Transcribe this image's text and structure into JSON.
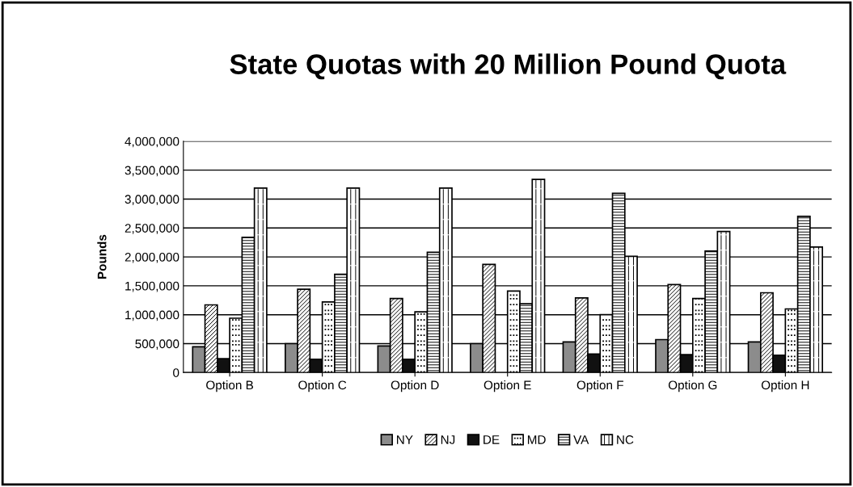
{
  "chart_data": {
    "type": "bar",
    "title": "State Quotas with 20 Million Pound Quota",
    "ylabel": "Pounds",
    "categories": [
      "Option B",
      "Option C",
      "Option D",
      "Option E",
      "Option F",
      "Option G",
      "Option H"
    ],
    "series": [
      {
        "name": "NY",
        "color": "#8c8c8c",
        "values": [
          445000,
          500000,
          460000,
          500000,
          530000,
          570000,
          530000
        ]
      },
      {
        "name": "NJ",
        "color": "#ffffff",
        "values": [
          1170000,
          1440000,
          1280000,
          1870000,
          1290000,
          1520000,
          1380000
        ]
      },
      {
        "name": "DE",
        "color": "#111111",
        "values": [
          240000,
          230000,
          230000,
          null,
          320000,
          310000,
          300000
        ]
      },
      {
        "name": "MD",
        "color": "#ffffff",
        "values": [
          940000,
          1220000,
          1050000,
          1410000,
          1000000,
          1280000,
          1100000
        ]
      },
      {
        "name": "VA",
        "color": "#ffffff",
        "values": [
          2340000,
          1700000,
          2080000,
          1190000,
          3100000,
          2100000,
          2700000
        ]
      },
      {
        "name": "NC",
        "color": "#ffffff",
        "values": [
          3190000,
          3190000,
          3190000,
          3340000,
          2010000,
          2440000,
          2170000
        ]
      }
    ],
    "ylim": [
      0,
      4000000
    ],
    "yticks": [
      {
        "value": 0,
        "label": "0"
      },
      {
        "value": 500000,
        "label": "500,000"
      },
      {
        "value": 1000000,
        "label": "1,000,000"
      },
      {
        "value": 1500000,
        "label": "1,500,000"
      },
      {
        "value": 2000000,
        "label": "2,000,000"
      },
      {
        "value": 2500000,
        "label": "2,500,000"
      },
      {
        "value": 3000000,
        "label": "3,000,000"
      },
      {
        "value": 3500000,
        "label": "3,500,000"
      },
      {
        "value": 4000000,
        "label": "4,000,000"
      }
    ],
    "grid": "y",
    "legend": "bottom"
  }
}
